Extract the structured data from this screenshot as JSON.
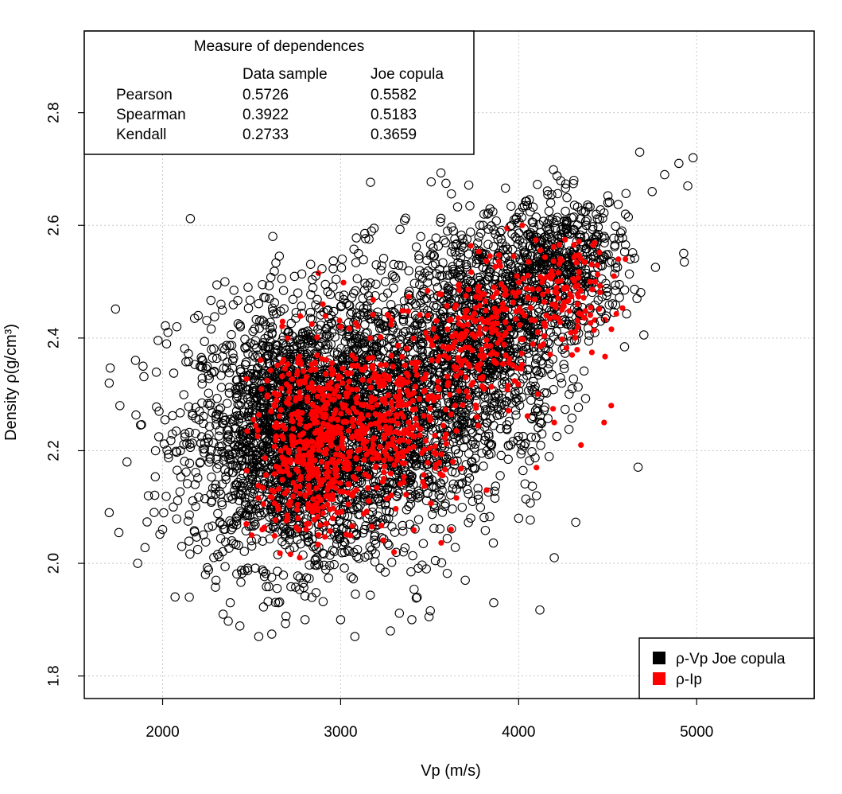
{
  "chart_data": {
    "type": "scatter",
    "xlabel": "Vp (m/s)",
    "ylabel": "Density ρ(g/cm³)",
    "xlim": [
      1560,
      5660
    ],
    "ylim": [
      1.76,
      2.945
    ],
    "xticks": [
      2000,
      3000,
      4000,
      5000
    ],
    "yticks": [
      1.8,
      2.0,
      2.2,
      2.4,
      2.6,
      2.8
    ],
    "xtick_labels": [
      "2000",
      "3000",
      "4000",
      "5000"
    ],
    "ytick_labels": [
      "1.8",
      "2.0",
      "2.2",
      "2.4",
      "2.6",
      "2.8"
    ],
    "grid": true,
    "legend_position": "bottom-right",
    "series": [
      {
        "name": "ρ-Vp Joe copula",
        "marker": "open-circle",
        "color": "#000000",
        "points": [
          [
            1700,
            2.32
          ],
          [
            1700,
            2.09
          ],
          [
            1760,
            2.28
          ],
          [
            1800,
            2.18
          ],
          [
            1860,
            2.0
          ],
          [
            1890,
            2.35
          ],
          [
            1920,
            2.12
          ],
          [
            1960,
            2.2
          ],
          [
            1980,
            2.27
          ],
          [
            2000,
            2.06
          ],
          [
            2030,
            2.41
          ],
          [
            2060,
            2.1
          ],
          [
            2080,
            2.42
          ],
          [
            2100,
            2.2
          ],
          [
            2150,
            1.94
          ],
          [
            2200,
            2.44
          ],
          [
            2250,
            2.35
          ],
          [
            2300,
            1.97
          ],
          [
            2350,
            2.5
          ],
          [
            2380,
            1.93
          ],
          [
            2480,
            2.49
          ],
          [
            2540,
            1.87
          ],
          [
            2600,
            2.47
          ],
          [
            2650,
            1.93
          ],
          [
            2760,
            2.48
          ],
          [
            2800,
            1.9
          ],
          [
            2860,
            2.51
          ],
          [
            2930,
            2.45
          ],
          [
            3000,
            1.9
          ],
          [
            3080,
            1.87
          ],
          [
            3100,
            2.55
          ],
          [
            3200,
            2.53
          ],
          [
            3280,
            1.88
          ],
          [
            3400,
            1.9
          ],
          [
            3450,
            2.58
          ],
          [
            3520,
            2.56
          ],
          [
            3600,
            2.59
          ],
          [
            3700,
            1.97
          ],
          [
            3800,
            2.6
          ],
          [
            3860,
            1.93
          ],
          [
            3960,
            2.6
          ],
          [
            4000,
            2.08
          ],
          [
            4100,
            2.12
          ],
          [
            4180,
            2.64
          ],
          [
            4200,
            2.01
          ],
          [
            4300,
            2.31
          ],
          [
            4380,
            2.6
          ],
          [
            4460,
            2.43
          ],
          [
            4600,
            2.62
          ],
          [
            4680,
            2.73
          ],
          [
            4750,
            2.66
          ],
          [
            4820,
            2.69
          ],
          [
            4900,
            2.71
          ],
          [
            4950,
            2.67
          ],
          [
            4980,
            2.72
          ]
        ]
      },
      {
        "name": "ρ-Ip",
        "marker": "filled-circle",
        "color": "#ff0000",
        "points": [
          [
            2470,
            2.07
          ],
          [
            2500,
            2.05
          ],
          [
            2560,
            2.06
          ],
          [
            2770,
            2.01
          ],
          [
            2900,
            2.46
          ],
          [
            3000,
            2.42
          ],
          [
            3300,
            2.02
          ],
          [
            3620,
            2.06
          ],
          [
            3820,
            2.13
          ],
          [
            4020,
            2.6
          ],
          [
            4100,
            2.17
          ],
          [
            4200,
            2.25
          ],
          [
            4300,
            2.37
          ],
          [
            4330,
            2.46
          ],
          [
            4350,
            2.21
          ],
          [
            4400,
            2.5
          ],
          [
            4480,
            2.25
          ],
          [
            4520,
            2.28
          ],
          [
            4560,
            2.54
          ],
          [
            4600,
            2.54
          ]
        ]
      }
    ]
  },
  "dependence_table": {
    "title": "Measure of dependences",
    "columns": [
      "Data sample",
      "Joe copula"
    ],
    "rows": [
      {
        "measure": "Pearson",
        "data_sample": "0.5726",
        "joe_copula": "0.5582"
      },
      {
        "measure": "Spearman",
        "data_sample": "0.3922",
        "joe_copula": "0.5183"
      },
      {
        "measure": "Kendall",
        "data_sample": "0.2733",
        "joe_copula": "0.3659"
      }
    ]
  },
  "legend": {
    "items": [
      {
        "label": "ρ-Vp Joe copula",
        "color": "#000000"
      },
      {
        "label": "ρ-Ip",
        "color": "#ff0000"
      }
    ]
  }
}
